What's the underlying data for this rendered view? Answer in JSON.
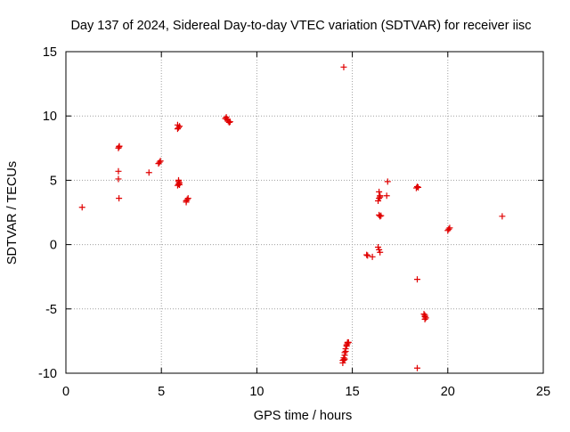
{
  "chart_data": {
    "type": "scatter",
    "title": "Day 137 of 2024, Sidereal Day-to-day VTEC variation (SDTVAR) for receiver iisc",
    "xlabel": "GPS time / hours",
    "ylabel": "SDTVAR / TECUs",
    "xlim": [
      0,
      25
    ],
    "ylim": [
      -10,
      15
    ],
    "x_ticks": [
      0,
      5,
      10,
      15,
      20,
      25
    ],
    "y_ticks": [
      -10,
      -5,
      0,
      5,
      10,
      15
    ],
    "x_tick_labels": [
      "0",
      "5",
      "10",
      "15",
      "20",
      "25"
    ],
    "y_tick_labels": [
      "-10",
      "-5",
      "0",
      "5",
      "10",
      "15"
    ],
    "grid": true,
    "marker": "+",
    "color": "#e00000",
    "series": [
      {
        "name": "SDTVAR",
        "x": [
          0.85,
          2.75,
          2.78,
          2.8,
          2.75,
          2.75,
          2.78,
          4.35,
          4.85,
          4.9,
          4.95,
          5.85,
          5.9,
          5.95,
          5.85,
          5.9,
          5.95,
          5.85,
          5.9,
          5.95,
          5.9,
          6.3,
          6.35,
          6.4,
          6.3,
          8.35,
          8.4,
          8.45,
          8.5,
          8.55,
          8.6,
          8.45,
          14.5,
          14.55,
          14.55,
          14.6,
          14.6,
          14.65,
          14.65,
          14.7,
          14.7,
          14.75,
          14.75,
          14.8,
          14.5,
          14.55,
          14.6,
          14.55,
          15.75,
          15.8,
          16.05,
          16.35,
          16.4,
          16.45,
          16.4,
          16.45,
          16.5,
          16.35,
          16.4,
          16.45,
          16.4,
          16.45,
          16.8,
          16.85,
          18.35,
          18.4,
          18.45,
          18.4,
          18.4,
          18.75,
          18.8,
          18.85,
          18.8,
          18.8,
          20.0,
          20.05,
          20.1,
          22.85
        ],
        "y": [
          2.9,
          7.5,
          7.6,
          7.65,
          5.7,
          5.1,
          3.6,
          5.6,
          6.3,
          6.4,
          6.5,
          9.0,
          9.1,
          9.2,
          9.3,
          5.0,
          4.8,
          4.6,
          4.7,
          4.65,
          4.9,
          3.3,
          3.5,
          3.6,
          3.4,
          9.8,
          9.9,
          9.7,
          9.6,
          9.5,
          9.55,
          9.75,
          -9.2,
          -9.0,
          -8.8,
          -8.6,
          -8.4,
          -8.3,
          -8.1,
          -7.9,
          -7.8,
          -7.6,
          -7.7,
          -7.6,
          -9.0,
          -8.95,
          -8.9,
          13.8,
          -0.8,
          -0.85,
          -0.95,
          -0.2,
          -0.4,
          -0.6,
          2.3,
          2.2,
          2.25,
          3.4,
          3.6,
          3.8,
          4.1,
          3.7,
          3.8,
          4.9,
          4.4,
          4.5,
          4.45,
          -2.7,
          -9.6,
          -5.4,
          -5.6,
          -5.7,
          -5.8,
          -5.5,
          1.1,
          1.2,
          1.3,
          2.2
        ]
      }
    ]
  }
}
